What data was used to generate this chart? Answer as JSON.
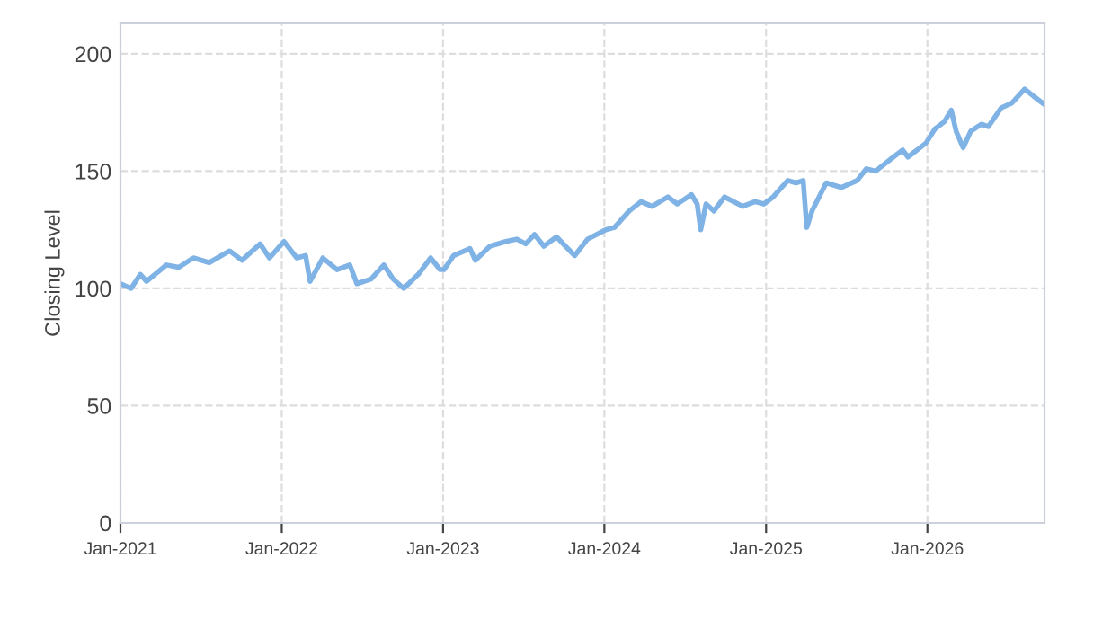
{
  "chart_data": {
    "type": "line",
    "ylabel": "Closing Level",
    "x": [
      "2021-01-01",
      "2021-01-25",
      "2021-02-15",
      "2021-03-01",
      "2021-04-15",
      "2021-05-13",
      "2021-06-15",
      "2021-07-21",
      "2021-09-05",
      "2021-10-03",
      "2021-11-13",
      "2021-12-04",
      "2022-01-06",
      "2022-02-04",
      "2022-02-24",
      "2022-03-06",
      "2022-04-04",
      "2022-05-06",
      "2022-06-04",
      "2022-06-20",
      "2022-07-22",
      "2022-08-20",
      "2022-09-10",
      "2022-10-04",
      "2022-11-06",
      "2022-12-04",
      "2022-12-25",
      "2023-01-03",
      "2023-01-25",
      "2023-03-03",
      "2023-03-15",
      "2023-04-17",
      "2023-05-23",
      "2023-06-17",
      "2023-07-07",
      "2023-07-27",
      "2023-08-17",
      "2023-09-15",
      "2023-10-05",
      "2023-10-26",
      "2023-11-24",
      "2024-01-04",
      "2024-01-24",
      "2024-02-26",
      "2024-03-24",
      "2024-04-18",
      "2024-05-24",
      "2024-06-14",
      "2024-07-16",
      "2024-07-29",
      "2024-08-06",
      "2024-08-18",
      "2024-09-05",
      "2024-09-29",
      "2024-11-09",
      "2024-12-07",
      "2024-12-27",
      "2025-01-17",
      "2025-02-19",
      "2025-03-10",
      "2025-03-26",
      "2025-04-03",
      "2025-04-15",
      "2025-05-17",
      "2025-06-20",
      "2025-07-26",
      "2025-08-16",
      "2025-09-06",
      "2025-10-16",
      "2025-11-06",
      "2025-11-18",
      "2025-12-29",
      "2026-01-18",
      "2026-02-08",
      "2026-02-24",
      "2026-03-07",
      "2026-03-23",
      "2026-04-09",
      "2026-05-03",
      "2026-05-19",
      "2026-06-17",
      "2026-07-11",
      "2026-08-09",
      "2026-08-29",
      "2026-09-19"
    ],
    "series": [
      {
        "color": "#7fb2e5",
        "values": [
          102,
          100,
          106,
          103,
          110,
          109,
          113,
          111,
          116,
          112,
          119,
          113,
          120,
          113,
          114,
          103,
          113,
          108,
          110,
          102,
          104,
          110,
          104,
          100,
          106,
          113,
          108,
          108,
          114,
          117,
          112,
          118,
          120,
          121,
          119,
          123,
          118,
          122,
          118,
          114,
          121,
          125,
          126,
          133,
          137,
          135,
          139,
          136,
          140,
          136,
          125,
          136,
          133,
          139,
          135,
          137,
          136,
          139,
          146,
          145,
          146,
          126,
          133,
          145,
          143,
          146,
          151,
          150,
          156,
          159,
          156,
          162,
          168,
          171,
          176,
          167,
          160,
          167,
          170,
          169,
          177,
          179,
          185,
          182,
          179
        ]
      }
    ],
    "xlim": [
      "2021-01-01",
      "2026-09-23"
    ],
    "xticks": [
      {
        "value": "2021-01-01",
        "label": "Jan-2021"
      },
      {
        "value": "2022-01-01",
        "label": "Jan-2022"
      },
      {
        "value": "2023-01-01",
        "label": "Jan-2023"
      },
      {
        "value": "2024-01-01",
        "label": "Jan-2024"
      },
      {
        "value": "2025-01-01",
        "label": "Jan-2025"
      },
      {
        "value": "2026-01-01",
        "label": "Jan-2026"
      }
    ],
    "ylim": [
      0,
      213
    ],
    "yticks": [
      0,
      50,
      100,
      150,
      200
    ],
    "grid": true,
    "line_style": "solid",
    "marker": "none"
  }
}
